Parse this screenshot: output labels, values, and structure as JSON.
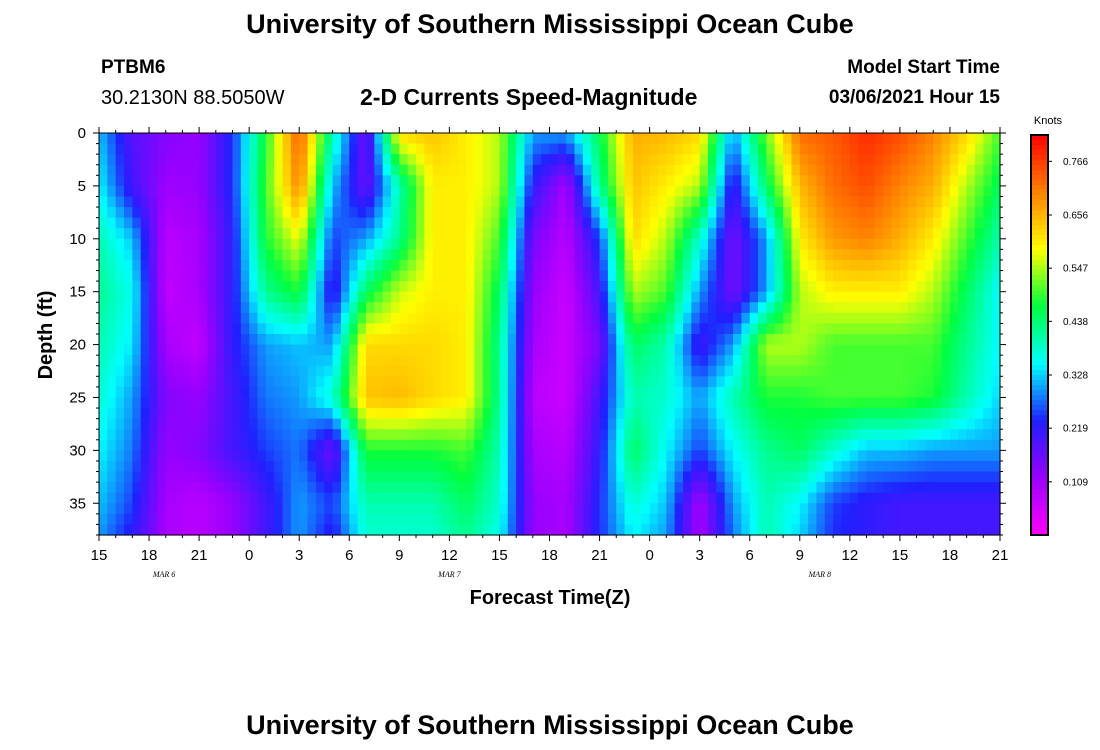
{
  "header": {
    "title": "University of Southern Mississippi Ocean Cube",
    "station_id": "PTBM6",
    "station_coords": "30.2130N 88.5050W",
    "plot_title": "2-D Currents Speed-Magnitude",
    "start_label": "Model Start Time",
    "start_value": "03/06/2021 Hour 15"
  },
  "footer": {
    "title": "University of Southern Mississippi Ocean Cube"
  },
  "chart_data": {
    "type": "heatmap",
    "title": "2-D Currents Speed-Magnitude",
    "xlabel": "Forecast Time(Z)",
    "ylabel": "Depth (ft)",
    "x_ticks": [
      "15",
      "18",
      "21",
      "0",
      "3",
      "6",
      "9",
      "12",
      "15",
      "18",
      "21",
      "0",
      "3",
      "6",
      "9",
      "12",
      "15",
      "18",
      "21"
    ],
    "x_hours_range": [
      0,
      54
    ],
    "date_labels": [
      {
        "label": "MAR 6",
        "tick_index": 1.3
      },
      {
        "label": "MAR 7",
        "tick_index": 7
      },
      {
        "label": "MAR 8",
        "tick_index": 14.4
      }
    ],
    "y_ticks": [
      "0",
      "5",
      "10",
      "15",
      "20",
      "25",
      "30",
      "35"
    ],
    "ylim": [
      0,
      38
    ],
    "y_inverted": true,
    "colorbar": {
      "label": "Knots",
      "ticks": [
        "0.766",
        "0.656",
        "0.547",
        "0.438",
        "0.328",
        "0.219",
        "0.109"
      ],
      "range": [
        0,
        0.82
      ],
      "colors": [
        "#ff00ff",
        "#9900ff",
        "#2020ff",
        "#00ffff",
        "#00ff40",
        "#ffff00",
        "#ff8000",
        "#ff0000"
      ]
    },
    "depths_ft": [
      0,
      5,
      10,
      15,
      20,
      25,
      30,
      35,
      38
    ],
    "hours": [
      0,
      2,
      4,
      6,
      8,
      10,
      12,
      14,
      16,
      18,
      20,
      22,
      24,
      26,
      28,
      30,
      32,
      34,
      36,
      38,
      40,
      42,
      44,
      46,
      48,
      50,
      52,
      54
    ],
    "values": [
      [
        0.32,
        0.18,
        0.14,
        0.12,
        0.24,
        0.48,
        0.74,
        0.4,
        0.15,
        0.62,
        0.64,
        0.6,
        0.55,
        0.3,
        0.3,
        0.46,
        0.66,
        0.65,
        0.62,
        0.3,
        0.52,
        0.72,
        0.74,
        0.78,
        0.75,
        0.7,
        0.62,
        0.5
      ],
      [
        0.35,
        0.2,
        0.11,
        0.12,
        0.24,
        0.5,
        0.7,
        0.32,
        0.16,
        0.4,
        0.6,
        0.6,
        0.55,
        0.22,
        0.1,
        0.42,
        0.64,
        0.6,
        0.55,
        0.2,
        0.45,
        0.65,
        0.72,
        0.75,
        0.7,
        0.66,
        0.55,
        0.45
      ],
      [
        0.4,
        0.32,
        0.08,
        0.1,
        0.22,
        0.48,
        0.58,
        0.25,
        0.3,
        0.42,
        0.6,
        0.6,
        0.5,
        0.15,
        0.08,
        0.25,
        0.62,
        0.55,
        0.38,
        0.15,
        0.3,
        0.6,
        0.68,
        0.7,
        0.66,
        0.6,
        0.5,
        0.4
      ],
      [
        0.42,
        0.36,
        0.07,
        0.1,
        0.22,
        0.42,
        0.48,
        0.2,
        0.45,
        0.56,
        0.6,
        0.6,
        0.45,
        0.12,
        0.06,
        0.2,
        0.55,
        0.5,
        0.3,
        0.15,
        0.3,
        0.55,
        0.6,
        0.6,
        0.6,
        0.55,
        0.45,
        0.35
      ],
      [
        0.4,
        0.34,
        0.1,
        0.07,
        0.22,
        0.3,
        0.32,
        0.3,
        0.62,
        0.62,
        0.62,
        0.6,
        0.42,
        0.1,
        0.06,
        0.15,
        0.45,
        0.4,
        0.2,
        0.3,
        0.55,
        0.55,
        0.5,
        0.5,
        0.5,
        0.5,
        0.42,
        0.35
      ],
      [
        0.38,
        0.3,
        0.14,
        0.12,
        0.2,
        0.28,
        0.3,
        0.38,
        0.64,
        0.65,
        0.62,
        0.6,
        0.42,
        0.08,
        0.06,
        0.2,
        0.4,
        0.38,
        0.3,
        0.4,
        0.48,
        0.48,
        0.5,
        0.5,
        0.5,
        0.48,
        0.4,
        0.33
      ],
      [
        0.35,
        0.28,
        0.12,
        0.14,
        0.2,
        0.25,
        0.28,
        0.15,
        0.48,
        0.48,
        0.48,
        0.5,
        0.4,
        0.1,
        0.08,
        0.22,
        0.45,
        0.35,
        0.25,
        0.35,
        0.42,
        0.45,
        0.38,
        0.32,
        0.32,
        0.3,
        0.3,
        0.3
      ],
      [
        0.32,
        0.25,
        0.1,
        0.08,
        0.12,
        0.2,
        0.3,
        0.25,
        0.4,
        0.4,
        0.4,
        0.45,
        0.38,
        0.12,
        0.1,
        0.24,
        0.38,
        0.32,
        0.1,
        0.3,
        0.4,
        0.35,
        0.25,
        0.22,
        0.2,
        0.2,
        0.2,
        0.2
      ],
      [
        0.3,
        0.22,
        0.1,
        0.08,
        0.12,
        0.2,
        0.3,
        0.22,
        0.38,
        0.38,
        0.38,
        0.42,
        0.36,
        0.12,
        0.1,
        0.24,
        0.35,
        0.3,
        0.1,
        0.28,
        0.4,
        0.33,
        0.24,
        0.22,
        0.2,
        0.2,
        0.2,
        0.2
      ]
    ]
  }
}
